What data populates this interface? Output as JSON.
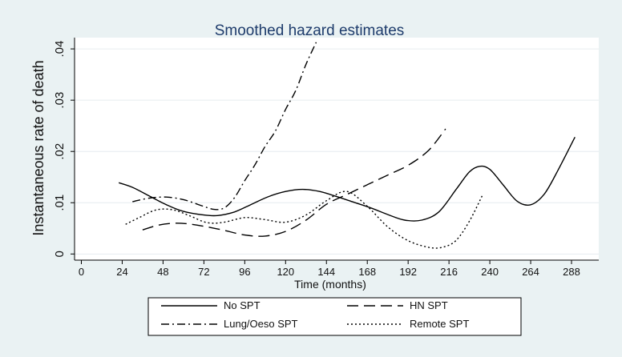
{
  "chart_data": {
    "type": "line",
    "title": "Smoothed hazard estimates",
    "xlabel": "Time (months)",
    "ylabel": "Instantaneous rate of death",
    "xlim": [
      -4,
      304
    ],
    "ylim": [
      -0.0012,
      0.0422
    ],
    "x_ticks": [
      0,
      24,
      48,
      72,
      96,
      120,
      144,
      168,
      192,
      216,
      240,
      264,
      288
    ],
    "y_ticks": [
      0,
      0.01,
      0.02,
      0.03,
      0.04
    ],
    "y_tick_labels": [
      "0",
      ".01",
      ".02",
      ".03",
      ".04"
    ],
    "grid": "horizontal",
    "legend_position": "bottom",
    "colors": {
      "background": "#eaf2f3",
      "plot_area": "#ffffff",
      "line": "#000000",
      "title": "#1d3b6b",
      "grid": "#e6ecef"
    },
    "series": [
      {
        "name": "No SPT",
        "dash": "solid",
        "x": [
          22,
          30,
          40,
          50,
          60,
          72,
          80,
          90,
          100,
          110,
          120,
          130,
          140,
          150,
          160,
          170,
          180,
          190,
          200,
          210,
          220,
          228,
          234,
          240,
          248,
          256,
          264,
          272,
          280,
          290
        ],
        "y": [
          0.0139,
          0.013,
          0.0113,
          0.0096,
          0.0083,
          0.0076,
          0.0075,
          0.0082,
          0.0097,
          0.0112,
          0.0122,
          0.0126,
          0.0122,
          0.0112,
          0.0101,
          0.009,
          0.0077,
          0.0066,
          0.0066,
          0.0082,
          0.0125,
          0.016,
          0.0171,
          0.0165,
          0.0134,
          0.0103,
          0.0096,
          0.0117,
          0.0163,
          0.0228
        ]
      },
      {
        "name": "HN SPT",
        "dash": "longdash",
        "x": [
          36,
          45,
          54,
          62,
          72,
          84,
          96,
          108,
          120,
          132,
          144,
          156,
          168,
          180,
          192,
          204,
          214
        ],
        "y": [
          0.0047,
          0.0056,
          0.006,
          0.0059,
          0.0054,
          0.0046,
          0.0037,
          0.0035,
          0.0044,
          0.0066,
          0.0097,
          0.0116,
          0.0135,
          0.0154,
          0.0173,
          0.0202,
          0.0244
        ]
      },
      {
        "name": "Lung/Oeso SPT",
        "dash": "dashdot",
        "x": [
          30,
          40,
          50,
          60,
          70,
          78,
          84,
          90,
          96,
          102,
          108,
          114,
          120,
          126,
          132,
          138
        ],
        "y": [
          0.0102,
          0.0109,
          0.0111,
          0.0106,
          0.0095,
          0.0087,
          0.009,
          0.011,
          0.0143,
          0.0174,
          0.021,
          0.024,
          0.0282,
          0.0319,
          0.037,
          0.0413
        ]
      },
      {
        "name": "Remote SPT",
        "dash": "dotted",
        "x": [
          26,
          34,
          44,
          54,
          64,
          74,
          84,
          96,
          108,
          120,
          132,
          144,
          156,
          168,
          180,
          192,
          204,
          212,
          220,
          228,
          236
        ],
        "y": [
          0.0058,
          0.0071,
          0.0086,
          0.0086,
          0.0074,
          0.0061,
          0.0062,
          0.0071,
          0.0067,
          0.0062,
          0.0076,
          0.0104,
          0.0122,
          0.0093,
          0.0053,
          0.0026,
          0.0013,
          0.0013,
          0.0026,
          0.0064,
          0.0117
        ]
      }
    ],
    "legend_order": [
      "No SPT",
      "HN SPT",
      "Lung/Oeso SPT",
      "Remote SPT"
    ]
  }
}
